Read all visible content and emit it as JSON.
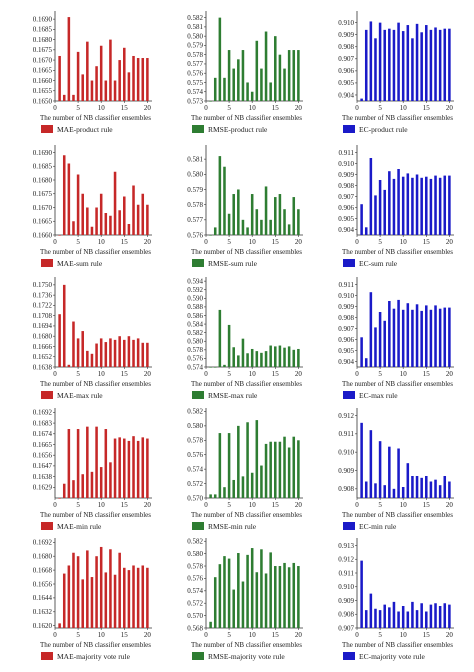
{
  "chart_data": [
    {
      "type": "bar",
      "legend": "MAE-product rule",
      "color": "#c62828",
      "xlabel": "The number of NB classifier ensembles",
      "x": [
        1,
        2,
        3,
        4,
        5,
        6,
        7,
        8,
        9,
        10,
        11,
        12,
        13,
        14,
        15,
        16,
        17,
        18,
        19,
        20
      ],
      "values": [
        0.1672,
        0.1653,
        0.1691,
        0.1653,
        0.1674,
        0.1663,
        0.1679,
        0.166,
        0.1667,
        0.1677,
        0.166,
        0.168,
        0.166,
        0.167,
        0.1676,
        0.1664,
        0.1672,
        0.1671,
        0.1671,
        0.1671
      ],
      "yticks": [
        "0.1650",
        "0.1655",
        "0.1660",
        "0.1665",
        "0.1670",
        "0.1675",
        "0.1680",
        "0.1685",
        "0.1690"
      ],
      "ylim": [
        0.165,
        0.1693
      ],
      "xticks": [
        "0",
        "5",
        "10",
        "15",
        "20"
      ]
    },
    {
      "type": "bar",
      "legend": "RMSE-product rule",
      "color": "#2e7d32",
      "xlabel": "The number of NB classifier ensembles",
      "x": [
        1,
        2,
        3,
        4,
        5,
        6,
        7,
        8,
        9,
        10,
        11,
        12,
        13,
        14,
        15,
        16,
        17,
        18,
        19,
        20
      ],
      "values": [
        0.573,
        0.5755,
        0.582,
        0.5755,
        0.5785,
        0.5765,
        0.5775,
        0.5785,
        0.575,
        0.574,
        0.5795,
        0.5765,
        0.5805,
        0.575,
        0.58,
        0.578,
        0.5765,
        0.5785,
        0.5785,
        0.5785
      ],
      "yticks": [
        "0.573",
        "0.574",
        "0.575",
        "0.576",
        "0.577",
        "0.578",
        "0.579",
        "0.580",
        "0.581",
        "0.582"
      ],
      "ylim": [
        0.573,
        0.5825
      ],
      "xticks": [
        "0",
        "5",
        "10",
        "15",
        "20"
      ]
    },
    {
      "type": "bar",
      "legend": "EC-product rule",
      "color": "#1a1ac8",
      "xlabel": "The number of NB classifier ensembles",
      "x": [
        1,
        2,
        3,
        4,
        5,
        6,
        7,
        8,
        9,
        10,
        11,
        12,
        13,
        14,
        15,
        16,
        17,
        18,
        19,
        20
      ],
      "values": [
        0.9037,
        0.9094,
        0.9101,
        0.9087,
        0.91,
        0.9094,
        0.9095,
        0.9094,
        0.91,
        0.9093,
        0.9098,
        0.9087,
        0.9099,
        0.9092,
        0.9098,
        0.9094,
        0.9096,
        0.9094,
        0.9095,
        0.9095
      ],
      "yticks": [
        "0.904",
        "0.905",
        "0.906",
        "0.907",
        "0.908",
        "0.909",
        "0.910"
      ],
      "ylim": [
        0.9035,
        0.9108
      ],
      "xticks": [
        "0",
        "5",
        "10",
        "15",
        "20"
      ]
    },
    {
      "type": "bar",
      "legend": "MAE-sum rule",
      "color": "#c62828",
      "xlabel": "The number of NB classifier ensembles",
      "x": [
        1,
        2,
        3,
        4,
        5,
        6,
        7,
        8,
        9,
        10,
        11,
        12,
        13,
        14,
        15,
        16,
        17,
        18,
        19,
        20
      ],
      "values": [
        0.166,
        0.1689,
        0.1686,
        0.1665,
        0.1682,
        0.1675,
        0.167,
        0.1663,
        0.167,
        0.1675,
        0.1668,
        0.1667,
        0.1683,
        0.1669,
        0.1674,
        0.1664,
        0.1678,
        0.1671,
        0.1675,
        0.1671
      ],
      "yticks": [
        "0.1660",
        "0.1665",
        "0.1670",
        "0.1675",
        "0.1680",
        "0.1685",
        "0.1690"
      ],
      "ylim": [
        0.166,
        0.1692
      ],
      "xticks": [
        "0",
        "5",
        "10",
        "15",
        "20"
      ]
    },
    {
      "type": "bar",
      "legend": "RMSE-sum rule",
      "color": "#2e7d32",
      "xlabel": "The number of NB classifier ensembles",
      "x": [
        1,
        2,
        3,
        4,
        5,
        6,
        7,
        8,
        9,
        10,
        11,
        12,
        13,
        14,
        15,
        16,
        17,
        18,
        19,
        20
      ],
      "values": [
        0.576,
        0.5765,
        0.5812,
        0.5805,
        0.5774,
        0.5787,
        0.579,
        0.577,
        0.5765,
        0.5787,
        0.5777,
        0.577,
        0.5792,
        0.577,
        0.5785,
        0.5787,
        0.5777,
        0.5767,
        0.5785,
        0.5777
      ],
      "yticks": [
        "0.576",
        "0.577",
        "0.578",
        "0.579",
        "0.580",
        "0.581"
      ],
      "ylim": [
        0.576,
        0.5818
      ],
      "xticks": [
        "0",
        "5",
        "10",
        "15",
        "20"
      ]
    },
    {
      "type": "bar",
      "legend": "EC-sum rule",
      "color": "#1a1ac8",
      "xlabel": "The number of NB classifier ensembles",
      "x": [
        1,
        2,
        3,
        4,
        5,
        6,
        7,
        8,
        9,
        10,
        11,
        12,
        13,
        14,
        15,
        16,
        17,
        18,
        19,
        20
      ],
      "values": [
        0.9063,
        0.9042,
        0.9105,
        0.9071,
        0.9085,
        0.9076,
        0.9093,
        0.9086,
        0.9095,
        0.9088,
        0.9091,
        0.9087,
        0.909,
        0.9087,
        0.9088,
        0.9086,
        0.9089,
        0.9087,
        0.9089,
        0.9089
      ],
      "yticks": [
        "0.904",
        "0.905",
        "0.906",
        "0.907",
        "0.908",
        "0.909",
        "0.910",
        "0.911"
      ],
      "ylim": [
        0.9035,
        0.9115
      ],
      "xticks": [
        "0",
        "5",
        "10",
        "15",
        "20"
      ]
    },
    {
      "type": "bar",
      "legend": "MAE-max rule",
      "color": "#c62828",
      "xlabel": "The number of NB classifier ensembles",
      "x": [
        1,
        2,
        3,
        4,
        5,
        6,
        7,
        8,
        9,
        10,
        11,
        12,
        13,
        14,
        15,
        16,
        17,
        18,
        19,
        20
      ],
      "values": [
        0.171,
        0.175,
        0.1641,
        0.17,
        0.1677,
        0.1687,
        0.166,
        0.1656,
        0.167,
        0.1677,
        0.1672,
        0.1677,
        0.1675,
        0.168,
        0.1675,
        0.168,
        0.1675,
        0.1677,
        0.1671,
        0.1671
      ],
      "yticks": [
        "0.1638",
        "0.1652",
        "0.1666",
        "0.1680",
        "0.1694",
        "0.1708",
        "0.1722",
        "0.1736",
        "0.1750"
      ],
      "ylim": [
        0.1638,
        0.1758
      ],
      "xticks": [
        "0",
        "5",
        "10",
        "15",
        "20"
      ]
    },
    {
      "type": "bar",
      "legend": "RMSE-max rule",
      "color": "#2e7d32",
      "xlabel": "The number of NB classifier ensembles",
      "x": [
        1,
        2,
        3,
        4,
        5,
        6,
        7,
        8,
        9,
        10,
        11,
        12,
        13,
        14,
        15,
        16,
        17,
        18,
        19,
        20
      ],
      "values": [
        0.574,
        0.574,
        0.5873,
        0.5745,
        0.5838,
        0.5786,
        0.5767,
        0.5806,
        0.5772,
        0.5782,
        0.5777,
        0.5773,
        0.5777,
        0.579,
        0.5788,
        0.579,
        0.5785,
        0.5788,
        0.578,
        0.5782
      ],
      "yticks": [
        "0.574",
        "0.576",
        "0.578",
        "0.580",
        "0.582",
        "0.584",
        "0.586",
        "0.588",
        "0.590",
        "0.592",
        "0.594"
      ],
      "ylim": [
        0.574,
        0.5945
      ],
      "xticks": [
        "0",
        "5",
        "10",
        "15",
        "20"
      ]
    },
    {
      "type": "bar",
      "legend": "EC-max rule",
      "color": "#1a1ac8",
      "xlabel": "The number of NB classifier ensembles",
      "x": [
        1,
        2,
        3,
        4,
        5,
        6,
        7,
        8,
        9,
        10,
        11,
        12,
        13,
        14,
        15,
        16,
        17,
        18,
        19,
        20
      ],
      "values": [
        0.9062,
        0.9043,
        0.9103,
        0.9071,
        0.9085,
        0.9077,
        0.9095,
        0.9088,
        0.9096,
        0.9087,
        0.9093,
        0.9087,
        0.9092,
        0.9086,
        0.9091,
        0.9087,
        0.9091,
        0.9088,
        0.9089,
        0.9089
      ],
      "yticks": [
        "0.904",
        "0.905",
        "0.906",
        "0.907",
        "0.908",
        "0.909",
        "0.910",
        "0.911"
      ],
      "ylim": [
        0.9035,
        0.9115
      ],
      "xticks": [
        "0",
        "5",
        "10",
        "15",
        "20"
      ]
    },
    {
      "type": "bar",
      "legend": "MAE-min rule",
      "color": "#c62828",
      "xlabel": "The number of NB classifier ensembles",
      "x": [
        1,
        2,
        3,
        4,
        5,
        6,
        7,
        8,
        9,
        10,
        11,
        12,
        13,
        14,
        15,
        16,
        17,
        18,
        19,
        20
      ],
      "values": [
        0.162,
        0.1632,
        0.1678,
        0.1635,
        0.1678,
        0.164,
        0.168,
        0.1642,
        0.168,
        0.1646,
        0.1678,
        0.165,
        0.167,
        0.1671,
        0.167,
        0.1668,
        0.1672,
        0.1668,
        0.1671,
        0.167
      ],
      "yticks": [
        "0.1629",
        "0.1638",
        "0.1647",
        "0.1656",
        "0.1665",
        "0.1674",
        "0.1683",
        "0.1692"
      ],
      "ylim": [
        0.162,
        0.1694
      ],
      "xticks": [
        "0",
        "5",
        "10",
        "15",
        "20"
      ]
    },
    {
      "type": "bar",
      "legend": "RMSE-min rule",
      "color": "#2e7d32",
      "xlabel": "The number of NB classifier ensembles",
      "x": [
        1,
        2,
        3,
        4,
        5,
        6,
        7,
        8,
        9,
        10,
        11,
        12,
        13,
        14,
        15,
        16,
        17,
        18,
        19,
        20
      ],
      "values": [
        0.5705,
        0.5705,
        0.579,
        0.5715,
        0.579,
        0.5725,
        0.58,
        0.573,
        0.5805,
        0.5735,
        0.5808,
        0.5745,
        0.5775,
        0.5778,
        0.5778,
        0.5778,
        0.5785,
        0.577,
        0.5785,
        0.578
      ],
      "yticks": [
        "0.570",
        "0.572",
        "0.574",
        "0.576",
        "0.578",
        "0.580",
        "0.582"
      ],
      "ylim": [
        0.57,
        0.5822
      ],
      "xticks": [
        "0",
        "5",
        "10",
        "15",
        "20"
      ]
    },
    {
      "type": "bar",
      "legend": "EC-min rule",
      "color": "#1a1ac8",
      "xlabel": "The number of NB classifier ensembles",
      "x": [
        1,
        2,
        3,
        4,
        5,
        6,
        7,
        8,
        9,
        10,
        11,
        12,
        13,
        14,
        15,
        16,
        17,
        18,
        19,
        20
      ],
      "values": [
        0.9116,
        0.9084,
        0.9112,
        0.9083,
        0.9106,
        0.9082,
        0.9103,
        0.908,
        0.9102,
        0.9081,
        0.9094,
        0.9087,
        0.9087,
        0.9086,
        0.9087,
        0.9084,
        0.9085,
        0.9082,
        0.9087,
        0.9084
      ],
      "yticks": [
        "0.908",
        "0.909",
        "0.910",
        "0.911",
        "0.912"
      ],
      "ylim": [
        0.9075,
        0.9123
      ],
      "xticks": [
        "0",
        "5",
        "10",
        "15",
        "20"
      ]
    },
    {
      "type": "bar",
      "legend": "MAE-majority vote rule",
      "color": "#c62828",
      "xlabel": "The number of NB classifier ensembles",
      "x": [
        1,
        2,
        3,
        4,
        5,
        6,
        7,
        8,
        9,
        10,
        11,
        12,
        13,
        14,
        15,
        16,
        17,
        18,
        19,
        20
      ],
      "values": [
        0.1622,
        0.1665,
        0.1672,
        0.1683,
        0.168,
        0.166,
        0.1685,
        0.1662,
        0.168,
        0.1688,
        0.1666,
        0.1686,
        0.1664,
        0.1683,
        0.167,
        0.1668,
        0.1672,
        0.167,
        0.1672,
        0.167
      ],
      "yticks": [
        "0.1620",
        "0.1632",
        "0.1644",
        "0.1656",
        "0.1668",
        "0.1680",
        "0.1692"
      ],
      "ylim": [
        0.1618,
        0.1694
      ],
      "xticks": [
        "0",
        "5",
        "10",
        "15",
        "20"
      ]
    },
    {
      "type": "bar",
      "legend": "RMSE-majority vote rule",
      "color": "#2e7d32",
      "xlabel": "The number of NB classifier ensembles",
      "x": [
        1,
        2,
        3,
        4,
        5,
        6,
        7,
        8,
        9,
        10,
        11,
        12,
        13,
        14,
        15,
        16,
        17,
        18,
        19,
        20
      ],
      "values": [
        0.569,
        0.5762,
        0.5783,
        0.5796,
        0.5792,
        0.5742,
        0.5801,
        0.5755,
        0.5798,
        0.5809,
        0.577,
        0.5807,
        0.5768,
        0.5802,
        0.578,
        0.578,
        0.5785,
        0.5778,
        0.5785,
        0.578
      ],
      "yticks": [
        "0.568",
        "0.570",
        "0.572",
        "0.574",
        "0.576",
        "0.578",
        "0.580",
        "0.582"
      ],
      "ylim": [
        0.568,
        0.5822
      ],
      "xticks": [
        "0",
        "5",
        "10",
        "15",
        "20"
      ]
    },
    {
      "type": "bar",
      "legend": "EC-majority vote rule",
      "color": "#1a1ac8",
      "xlabel": "The number of NB classifier ensembles",
      "x": [
        1,
        2,
        3,
        4,
        5,
        6,
        7,
        8,
        9,
        10,
        11,
        12,
        13,
        14,
        15,
        16,
        17,
        18,
        19,
        20
      ],
      "values": [
        0.9119,
        0.9083,
        0.9095,
        0.9084,
        0.9083,
        0.9087,
        0.9085,
        0.9089,
        0.9082,
        0.9086,
        0.9082,
        0.9089,
        0.9083,
        0.9088,
        0.9082,
        0.9087,
        0.9088,
        0.9086,
        0.9088,
        0.9087
      ],
      "yticks": [
        "0.907",
        "0.908",
        "0.909",
        "0.910",
        "0.911",
        "0.912",
        "0.913"
      ],
      "ylim": [
        0.907,
        0.9134
      ],
      "xticks": [
        "0",
        "5",
        "10",
        "15",
        "20"
      ]
    }
  ]
}
